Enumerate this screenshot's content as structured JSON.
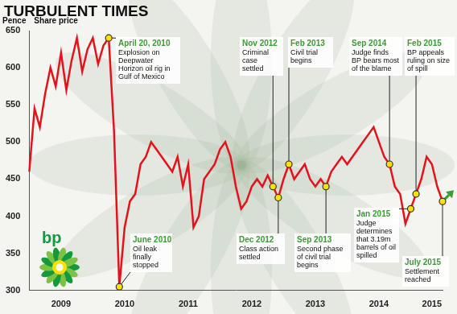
{
  "chart_data": {
    "type": "line",
    "title": "TURBULENT TIMES",
    "y_label": "Share price",
    "y_unit_label": "Pence",
    "logo": "bp",
    "color": "#e3121b",
    "ylim": [
      300,
      650
    ],
    "yticks": [
      300,
      350,
      400,
      450,
      500,
      550,
      600,
      650
    ],
    "grid": false,
    "categories": [
      null,
      null,
      null,
      null,
      null,
      null,
      "2009",
      null,
      null,
      null,
      null,
      null,
      null,
      null,
      null,
      null,
      null,
      null,
      "2010",
      null,
      null,
      null,
      null,
      null,
      null,
      null,
      null,
      null,
      null,
      null,
      "2011",
      null,
      null,
      null,
      null,
      null,
      null,
      null,
      null,
      null,
      null,
      null,
      "2012",
      null,
      null,
      null,
      null,
      null,
      null,
      null,
      null,
      null,
      null,
      null,
      "2013",
      null,
      null,
      null,
      null,
      null,
      null,
      null,
      null,
      null,
      null,
      null,
      "2014",
      null,
      null,
      null,
      null,
      null,
      null,
      null,
      null,
      null,
      "2015",
      null,
      null
    ],
    "values": [
      460,
      545,
      520,
      565,
      600,
      575,
      620,
      570,
      610,
      640,
      595,
      625,
      640,
      605,
      630,
      640,
      515,
      305,
      385,
      420,
      430,
      470,
      480,
      500,
      490,
      480,
      470,
      460,
      480,
      440,
      470,
      385,
      400,
      450,
      460,
      470,
      490,
      500,
      480,
      440,
      410,
      420,
      440,
      450,
      440,
      455,
      440,
      425,
      450,
      470,
      450,
      460,
      470,
      450,
      440,
      450,
      440,
      460,
      470,
      480,
      470,
      480,
      490,
      500,
      510,
      520,
      500,
      480,
      470,
      440,
      430,
      390,
      410,
      430,
      450,
      480,
      470,
      440,
      420
    ],
    "annotations": [
      null,
      null,
      null,
      null,
      null,
      null,
      null,
      null,
      null,
      null,
      null,
      null,
      null,
      null,
      null,
      {
        "date": "April 20, 2010",
        "text": "Explosion on Deepwater Horizon oil rig in Gulf of Mexico"
      },
      null,
      {
        "date": "June 2010",
        "text": "Oil leak finally stopped"
      },
      null,
      null,
      null,
      null,
      null,
      null,
      null,
      null,
      null,
      null,
      null,
      null,
      null,
      null,
      null,
      null,
      null,
      null,
      null,
      null,
      null,
      null,
      null,
      null,
      null,
      null,
      null,
      null,
      {
        "date": "Nov 2012",
        "text": "Criminal case settled"
      },
      {
        "date": "Dec 2012",
        "text": "Class action settled"
      },
      null,
      {
        "date": "Feb 2013",
        "text": "Civil trial begins"
      },
      null,
      null,
      null,
      null,
      null,
      null,
      {
        "date": "Sep 2013",
        "text": "Second phase of civil trial begins"
      },
      null,
      null,
      null,
      null,
      null,
      null,
      null,
      null,
      null,
      null,
      null,
      {
        "date": "Sep 2014",
        "text": "Judge finds BP bears most of the blame"
      },
      null,
      null,
      null,
      {
        "date": "Jan 2015",
        "text": "Judge determines that 3.19m barrels of oil spilled"
      },
      {
        "date": "Feb 2015",
        "text": "BP appeals ruling on size of spill"
      },
      null,
      null,
      null,
      null,
      {
        "date": "July 2015",
        "text": "Settlement reached"
      }
    ]
  }
}
